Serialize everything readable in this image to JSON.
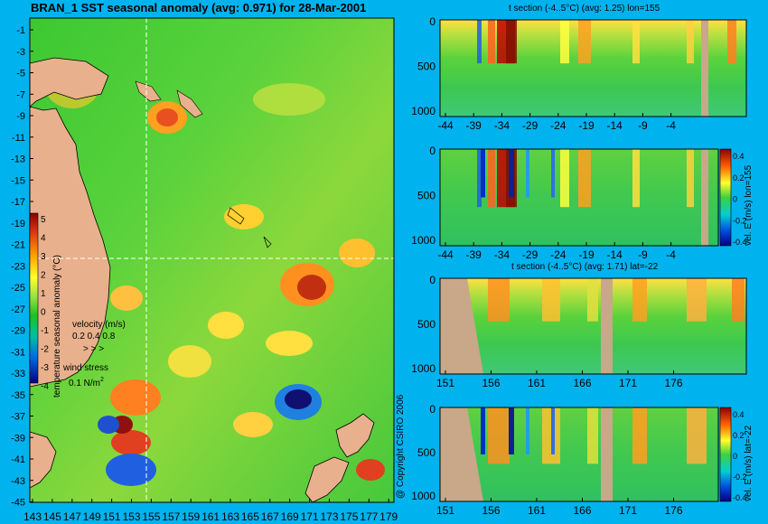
{
  "map": {
    "title": "BRAN_1 SST seasonal anomaly (avg: 0.971) for 28-Mar-2001",
    "lat_ticks": [
      "-1",
      "-3",
      "-5",
      "-7",
      "-9",
      "-11",
      "-13",
      "-15",
      "-17",
      "-19",
      "-21",
      "-23",
      "-25",
      "-27",
      "-29",
      "-31",
      "-33",
      "-35",
      "-37",
      "-39",
      "-41",
      "-43",
      "-45"
    ],
    "lon_ticks": [
      "143",
      "145",
      "147",
      "149",
      "151",
      "153",
      "155",
      "157",
      "159",
      "161",
      "163",
      "165",
      "167",
      "169",
      "171",
      "173",
      "175",
      "177",
      "179"
    ],
    "colorbar_label": "temperature seasonal anomaly (°C)",
    "colorbar_ticks": [
      "5",
      "4",
      "3",
      "2",
      "1",
      "0",
      "-1",
      "-2",
      "-3",
      "-4"
    ],
    "velocity_label": "velocity (m/s)",
    "velocity_ticks": "0.2 0.4 0.8",
    "wind_label": "wind stress",
    "wind_value": "0.1 N/m",
    "wind_sup": "2",
    "copyright": "@ Copyright CSIRO 2006"
  },
  "panels": [
    {
      "title": "t section (-4..5°C) (avg: 1.25) lon=155",
      "y_ticks": [
        "0",
        "500",
        "1000"
      ],
      "x_ticks": [
        "-44",
        "-39",
        "-34",
        "-29",
        "-24",
        "-19",
        "-14",
        "-9",
        "-4"
      ]
    },
    {
      "title": "",
      "y_ticks": [
        "0",
        "500",
        "1000"
      ],
      "x_ticks": [
        "-44",
        "-39",
        "-34",
        "-29",
        "-24",
        "-19",
        "-14",
        "-9",
        "-4"
      ],
      "cbar_label": "vel. E (m/s) lon=155",
      "cbar_ticks": [
        "0.4",
        "0.2",
        "0",
        "-0.2",
        "-0.4"
      ]
    },
    {
      "title": "t section (-4..5°C) (avg: 1.71) lat=-22",
      "y_ticks": [
        "0",
        "500",
        "1000"
      ],
      "x_ticks": [
        "151",
        "156",
        "161",
        "166",
        "171",
        "176"
      ]
    },
    {
      "title": "",
      "y_ticks": [
        "0",
        "500",
        "1000"
      ],
      "x_ticks": [
        "151",
        "156",
        "161",
        "166",
        "171",
        "176"
      ],
      "cbar_label": "vel. E (m/s) lat=-22",
      "cbar_ticks": [
        "0.4",
        "0.2",
        "0",
        "-0.2",
        "-0.4"
      ]
    }
  ],
  "colors": {
    "background": "#00b3ee",
    "land": "#e8b08c",
    "section_land": "#c8a888",
    "crosshair": "#ffffff"
  }
}
